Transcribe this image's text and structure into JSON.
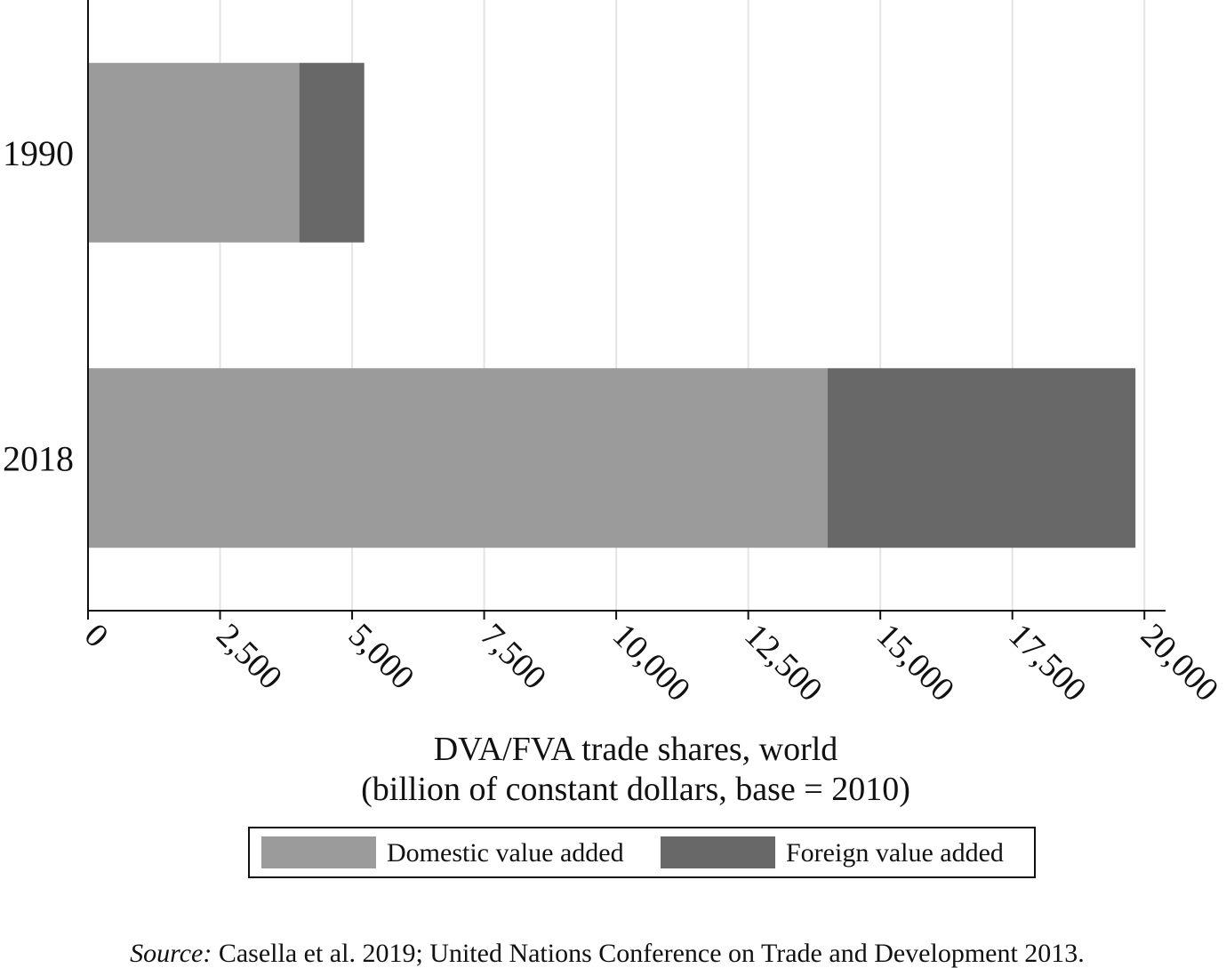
{
  "chart_data": {
    "type": "bar",
    "orientation": "horizontal",
    "stacked": true,
    "categories": [
      "1990",
      "2018"
    ],
    "series": [
      {
        "name": "Domestic value added",
        "color": "#9b9b9b",
        "values": [
          4000,
          14000
        ]
      },
      {
        "name": "Foreign value added",
        "color": "#686868",
        "values": [
          1230,
          5830
        ]
      }
    ],
    "x_ticks": [
      0,
      2500,
      5000,
      7500,
      10000,
      12500,
      15000,
      17500,
      20000
    ],
    "x_tick_labels": [
      "0",
      "2,500",
      "5,000",
      "7,500",
      "10,000",
      "12,500",
      "15,000",
      "17,500",
      "20,000"
    ],
    "xlim": [
      0,
      20400
    ],
    "xlabel_line1": "DVA/FVA trade shares, world",
    "xlabel_line2": "(billion of constant dollars, base = 2010)",
    "ylabel": "",
    "grid": true,
    "legend_position": "bottom-center"
  },
  "source": {
    "label": "Source:",
    "text": " Casella et al. 2019;  United Nations Conference on Trade and Development 2013."
  }
}
